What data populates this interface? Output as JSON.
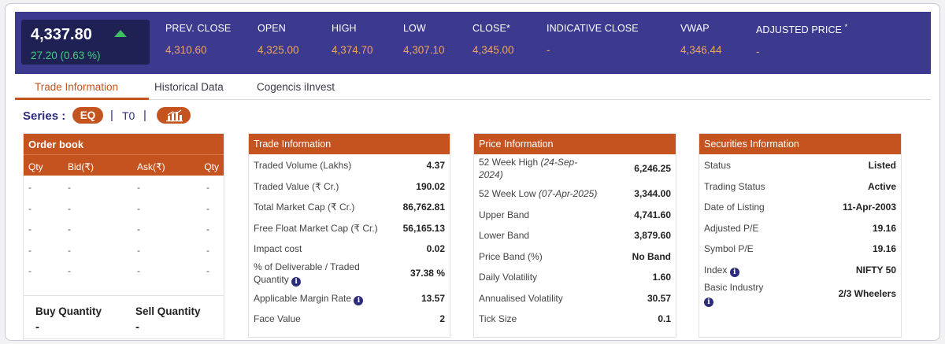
{
  "quote": {
    "last_price": "4,337.80",
    "change": "27.20 (0.63 %)",
    "stats": [
      {
        "label": "PREV. CLOSE",
        "value": "4,310.60"
      },
      {
        "label": "OPEN",
        "value": "4,325.00"
      },
      {
        "label": "HIGH",
        "value": "4,374.70"
      },
      {
        "label": "LOW",
        "value": "4,307.10"
      },
      {
        "label": "CLOSE*",
        "value": "4,345.00"
      },
      {
        "label": "INDICATIVE CLOSE",
        "value": "-"
      },
      {
        "label": "VWAP",
        "value": "4,346.44"
      },
      {
        "label": "ADJUSTED PRICE",
        "value": "-",
        "mark": "*"
      }
    ]
  },
  "tabs": [
    "Trade Information",
    "Historical Data",
    "Cogencis iInvest"
  ],
  "series": {
    "label": "Series :",
    "selected": "EQ",
    "other": "T0",
    "divider": "|"
  },
  "order_book": {
    "title": "Order book",
    "columns": [
      "Qty",
      "Bid(₹)",
      "Ask(₹)",
      "Qty"
    ],
    "rows": [
      [
        "-",
        "-",
        "-",
        "-"
      ],
      [
        "-",
        "-",
        "-",
        "-"
      ],
      [
        "-",
        "-",
        "-",
        "-"
      ],
      [
        "-",
        "-",
        "-",
        "-"
      ],
      [
        "-",
        "-",
        "-",
        "-"
      ]
    ],
    "buy_label": "Buy Quantity",
    "buy_value": "-",
    "sell_label": "Sell Quantity",
    "sell_value": "-"
  },
  "trade_info": {
    "title": "Trade Information",
    "rows": [
      {
        "k": "Traded Volume (Lakhs)",
        "v": "4.37"
      },
      {
        "k": "Traded Value (₹ Cr.)",
        "v": "190.02"
      },
      {
        "k": "Total Market Cap (₹ Cr.)",
        "v": "86,762.81"
      },
      {
        "k": "Free Float Market Cap (₹ Cr.)",
        "v": "56,165.13"
      },
      {
        "k": "Impact cost",
        "v": "0.02"
      },
      {
        "k1": "% of Deliverable / Traded",
        "k2": "Quantity",
        "v": "37.38 %"
      },
      {
        "k": "Applicable Margin Rate",
        "v": "13.57"
      },
      {
        "k": "Face Value",
        "v": "2"
      }
    ]
  },
  "price_info": {
    "title": "Price Information",
    "rows": [
      {
        "k": "52 Week High",
        "date1": "(24-Sep-",
        "date2": "2024)",
        "v": "6,246.25"
      },
      {
        "k": "52 Week Low",
        "date": "(07-Apr-2025)",
        "v": "3,344.00"
      },
      {
        "k": "Upper Band",
        "v": "4,741.60"
      },
      {
        "k": "Lower Band",
        "v": "3,879.60"
      },
      {
        "k": "Price Band (%)",
        "v": "No Band"
      },
      {
        "k": "Daily Volatility",
        "v": "1.60"
      },
      {
        "k": "Annualised Volatility",
        "v": "30.57"
      },
      {
        "k": "Tick Size",
        "v": "0.1"
      }
    ]
  },
  "securities_info": {
    "title": "Securities Information",
    "rows": [
      {
        "k": "Status",
        "v": "Listed"
      },
      {
        "k": "Trading Status",
        "v": "Active"
      },
      {
        "k": "Date of Listing",
        "v": "11-Apr-2003"
      },
      {
        "k": "Adjusted P/E",
        "v": "19.16"
      },
      {
        "k": "Symbol P/E",
        "v": "19.16"
      },
      {
        "k": "Index",
        "v": "NIFTY 50"
      },
      {
        "k": "Basic Industry",
        "v": "2/3 Wheelers"
      }
    ]
  },
  "icons": {
    "info": "i",
    "up": "up-arrow-icon",
    "chart": "bar-chart-icon"
  },
  "colors": {
    "header_bg": "#3b3a8f",
    "accent": "#c5531f",
    "positive": "#3fd17a",
    "stat_value": "#f0a45a"
  }
}
